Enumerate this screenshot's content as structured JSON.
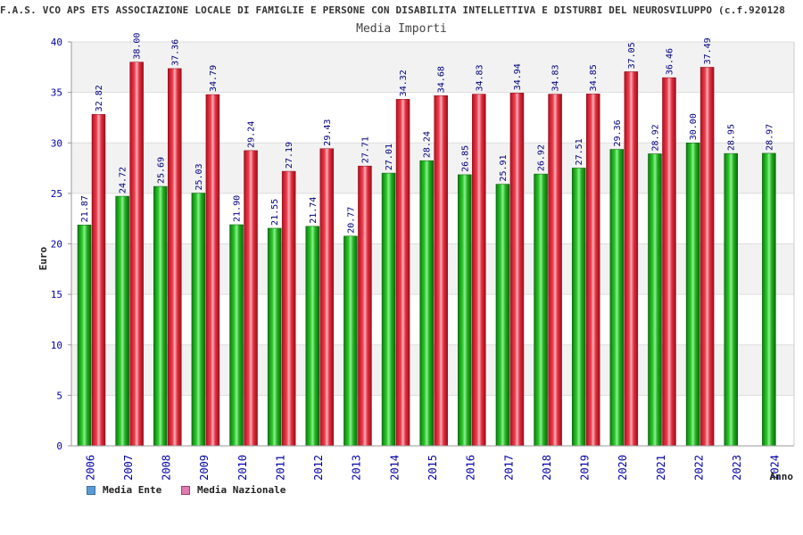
{
  "chart_data": {
    "type": "bar",
    "title": "F.A.S. VCO APS ETS ASSOCIAZIONE LOCALE DI FAMIGLIE E PERSONE CON DISABILITA INTELLETTIVA E DISTURBI DEL NEUROSVILUPPO (c.f.920128",
    "subtitle": "Media Importi",
    "xlabel": "Anno",
    "ylabel": "Euro",
    "ylim": [
      0,
      40
    ],
    "yticks": [
      0,
      5,
      10,
      15,
      20,
      25,
      30,
      35,
      40
    ],
    "categories": [
      "2006",
      "2007",
      "2008",
      "2009",
      "2010",
      "2011",
      "2012",
      "2013",
      "2014",
      "2015",
      "2016",
      "2017",
      "2018",
      "2019",
      "2020",
      "2021",
      "2022",
      "2023",
      "2024"
    ],
    "series": [
      {
        "name": "Media Ente",
        "color": "#22b022",
        "legend_color": "#5b9bd5",
        "values": [
          21.87,
          24.72,
          25.69,
          25.03,
          21.9,
          21.55,
          21.74,
          20.77,
          27.01,
          28.24,
          26.85,
          25.91,
          26.92,
          27.51,
          29.36,
          28.92,
          30.0,
          28.95,
          28.97
        ],
        "labels": [
          "21.87",
          "24.72",
          "25.69",
          "25.03",
          "21.90",
          "21.55",
          "21.74",
          "20.77",
          "27.01",
          "28.24",
          "26.85",
          "25.91",
          "26.92",
          "27.51",
          "29.36",
          "28.92",
          "30.00",
          "28.95",
          "28.97"
        ]
      },
      {
        "name": "Media Nazionale",
        "color": "#e03040",
        "legend_color": "#e07ab0",
        "values": [
          32.82,
          38.0,
          37.36,
          34.79,
          29.24,
          27.19,
          29.43,
          27.71,
          34.32,
          34.68,
          34.83,
          34.94,
          34.83,
          34.85,
          37.05,
          36.46,
          37.49,
          null,
          null
        ],
        "labels": [
          "32.82",
          "38.00",
          "37.36",
          "34.79",
          "29.24",
          "27.19",
          "29.43",
          "27.71",
          "34.32",
          "34.68",
          "34.83",
          "34.94",
          "34.83",
          "34.85",
          "37.05",
          "36.46",
          "37.49",
          null,
          null
        ]
      }
    ]
  }
}
